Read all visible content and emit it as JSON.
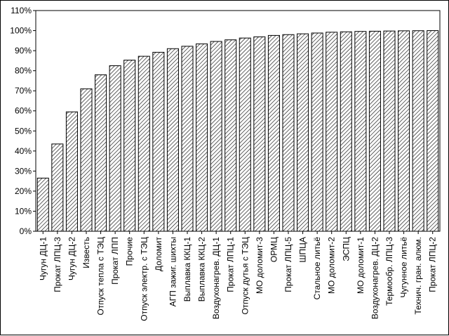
{
  "chart_data": {
    "type": "bar",
    "title": "",
    "xlabel": "",
    "ylabel": "",
    "ylim": [
      0,
      110
    ],
    "y_tick_step": 10,
    "y_tick_suffix": "%",
    "grid": false,
    "bar_fill": "hatched",
    "colors": {
      "bar_hatch": "#000000",
      "bar_background": "#ffffff",
      "axis": "#000000"
    },
    "categories": [
      "Чугун ДЦ-1",
      "Прокат ЛПЦ-3",
      "Чугун ДЦ-2",
      "Известь",
      "Отпуск тепла с ТЭЦ",
      "Прокат ЛПП",
      "Прочие",
      "Отпуск электр. с ТЭЦ",
      "Доломит",
      "АГП зажиг. шихты",
      "Выплавка ККЦ-1",
      "Выплавка ККЦ-2",
      "Воздухонагрев. ДЦ-1",
      "Прокат ЛПЦ-1",
      "Отпуск дутья с ТЭЦ",
      "МО доломит-3",
      "ОРМЦ",
      "Прокат ЛПЦ-5",
      "ШПЦА",
      "Стальное литьё",
      "МО доломит-2",
      "ЭСПЦ",
      "МО доломит-1",
      "Воздухонагрев. ДЦ-2",
      "Термообр. ЛПЦ-3",
      "Чугунное литьё",
      "Технич. гран. алюм.",
      "Прокат ЛПЦ-2"
    ],
    "values": [
      26.5,
      43.5,
      59.5,
      71,
      78,
      82.5,
      85.3,
      87.2,
      89.2,
      91,
      92.2,
      93.4,
      94.6,
      95.4,
      96.3,
      96.9,
      97.6,
      98,
      98.4,
      98.8,
      99.2,
      99.4,
      99.6,
      99.7,
      99.8,
      99.9,
      99.95,
      100
    ]
  }
}
